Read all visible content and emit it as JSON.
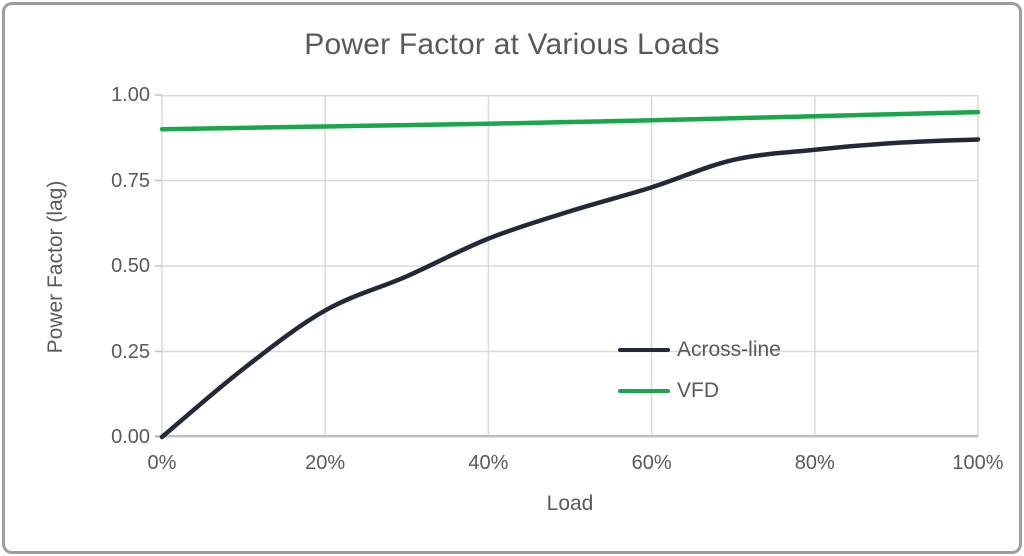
{
  "chart_data": {
    "type": "line",
    "title": "Power Factor at Various Loads",
    "xlabel": "Load",
    "ylabel": "Power Factor (lag)",
    "x": [
      0,
      10,
      20,
      30,
      40,
      50,
      60,
      70,
      80,
      90,
      100
    ],
    "series": [
      {
        "name": "Across-line",
        "color": "#222a38",
        "values": [
          0.0,
          0.2,
          0.37,
          0.47,
          0.58,
          0.66,
          0.73,
          0.81,
          0.84,
          0.86,
          0.87
        ]
      },
      {
        "name": "VFD",
        "color": "#1aa64a",
        "values": [
          0.9,
          0.904,
          0.908,
          0.912,
          0.916,
          0.921,
          0.926,
          0.932,
          0.938,
          0.944,
          0.95
        ]
      }
    ],
    "xlim": [
      0,
      100
    ],
    "ylim": [
      0,
      1.0
    ],
    "x_ticks": [
      0,
      20,
      40,
      60,
      80,
      100
    ],
    "x_tick_labels": [
      "0%",
      "20%",
      "40%",
      "60%",
      "80%",
      "100%"
    ],
    "y_ticks": [
      0,
      0.25,
      0.5,
      0.75,
      1.0
    ],
    "y_tick_labels": [
      "0.00",
      "0.25",
      "0.50",
      "0.75",
      "1.00"
    ],
    "grid": true,
    "legend_position": "inside right, stacked vertically",
    "grid_color": "#d9d9d9",
    "axis_color": "#bfbfbf",
    "text_color": "#595959"
  }
}
